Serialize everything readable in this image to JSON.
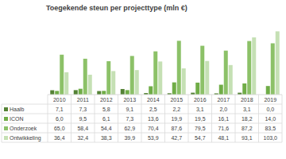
{
  "chart_data": {
    "type": "bar",
    "title": "Toegekende steun per projecttype (mln €)",
    "categories": [
      "2010",
      "2011",
      "2012",
      "2013",
      "2014",
      "2015",
      "2016",
      "2017",
      "2018",
      "2019"
    ],
    "series": [
      {
        "name": "Haalb",
        "color": "#548235",
        "values": [
          7.1,
          7.3,
          5.8,
          9.1,
          2.5,
          2.2,
          3.1,
          2.0,
          3.1,
          0.0
        ],
        "value_labels": [
          "7,1",
          "7,3",
          "5,8",
          "9,1",
          "2,5",
          "2,2",
          "3,1",
          "2,0",
          "3,1",
          "0,0"
        ]
      },
      {
        "name": "ICON",
        "color": "#70ad47",
        "values": [
          6.0,
          9.5,
          6.1,
          7.3,
          13.6,
          19.9,
          19.5,
          16.1,
          18.2,
          14.0
        ],
        "value_labels": [
          "6,0",
          "9,5",
          "6,1",
          "7,3",
          "13,6",
          "19,9",
          "19,5",
          "16,1",
          "18,2",
          "14,0"
        ]
      },
      {
        "name": "Onderzoek",
        "color": "#8cc168",
        "values": [
          65.0,
          58.4,
          54.4,
          62.9,
          70.4,
          87.6,
          79.5,
          71.6,
          87.2,
          83.5
        ],
        "value_labels": [
          "65,0",
          "58,4",
          "54,4",
          "62,9",
          "70,4",
          "87,6",
          "79,5",
          "71,6",
          "87,2",
          "83,5"
        ]
      },
      {
        "name": "Ontwikkeling",
        "color": "#c5e0b4",
        "values": [
          36.4,
          32.4,
          38.3,
          39.9,
          53.9,
          42.7,
          54.7,
          48.1,
          93.1,
          103.0
        ],
        "value_labels": [
          "36,4",
          "32,4",
          "38,3",
          "39,9",
          "53,9",
          "42,7",
          "54,7",
          "48,1",
          "93,1",
          "103,0"
        ]
      }
    ],
    "ylim": [
      0,
      110
    ],
    "grid": false,
    "tick_labels": "x",
    "data_labels": true
  }
}
